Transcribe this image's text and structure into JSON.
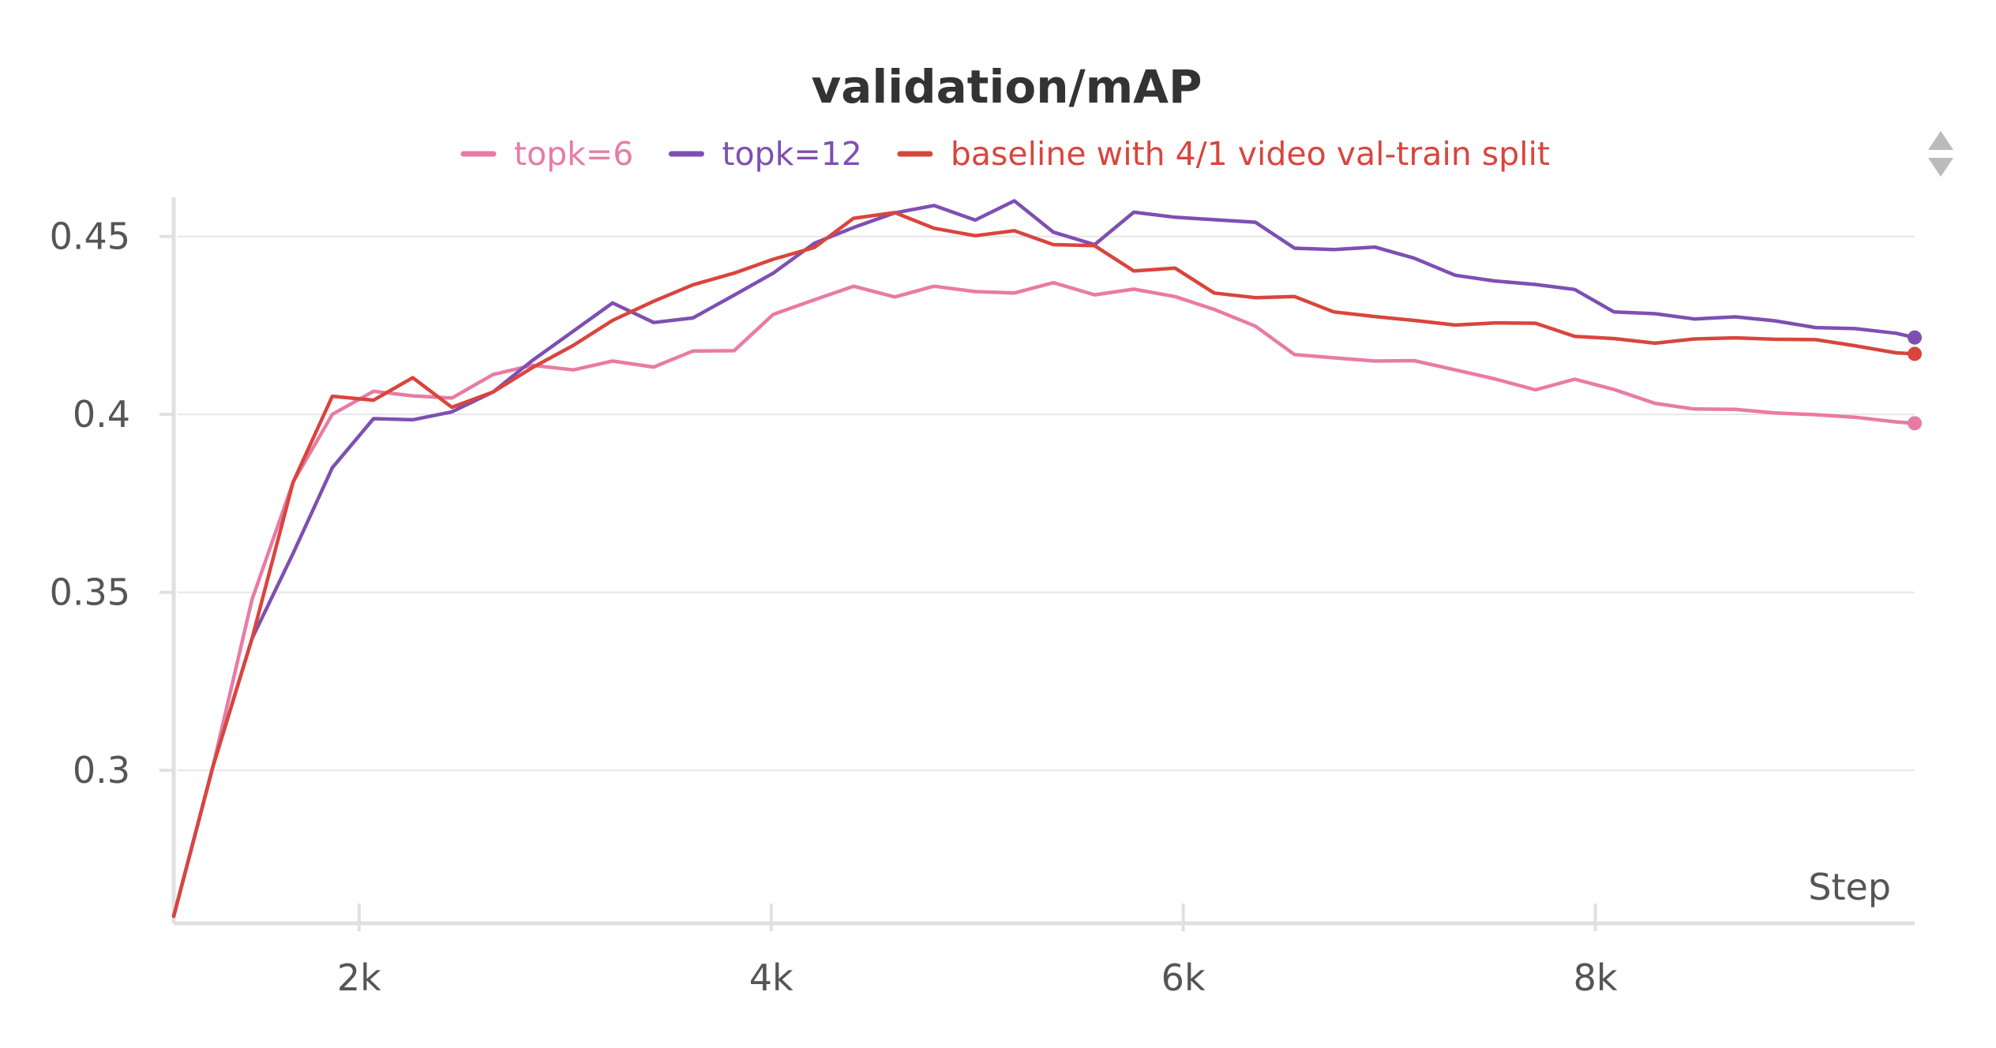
{
  "chart_data": {
    "type": "line",
    "title": "validation/mAP",
    "xlabel": "Step",
    "ylabel": "",
    "xlim": [
      1100,
      9550
    ],
    "ylim": [
      0.257,
      0.461
    ],
    "x_ticks": [
      2000,
      4000,
      6000,
      8000
    ],
    "x_tick_labels": [
      "2k",
      "4k",
      "6k",
      "8k"
    ],
    "y_ticks": [
      0.3,
      0.35,
      0.4,
      0.45
    ],
    "y_tick_labels": [
      "0.3",
      "0.35",
      "0.4",
      "0.45"
    ],
    "grid": true,
    "legend_position": "top-center",
    "series": [
      {
        "name": "topk=6",
        "color": "#e87ba4",
        "x": [
          1100,
          1290,
          1480,
          1680,
          1870,
          2070,
          2260,
          2450,
          2650,
          2840,
          3040,
          3230,
          3430,
          3620,
          3820,
          4010,
          4210,
          4400,
          4600,
          4790,
          4990,
          5180,
          5370,
          5570,
          5760,
          5960,
          6150,
          6350,
          6540,
          6730,
          6930,
          7120,
          7320,
          7510,
          7710,
          7900,
          8090,
          8290,
          8480,
          8680,
          8870,
          9070,
          9260,
          9460,
          9550
        ],
        "y": [
          0.259,
          0.301,
          0.348,
          0.381,
          0.4,
          0.4065,
          0.4052,
          0.4046,
          0.4112,
          0.4138,
          0.4125,
          0.415,
          0.4133,
          0.4178,
          0.4179,
          0.4281,
          0.4322,
          0.436,
          0.433,
          0.436,
          0.4345,
          0.4341,
          0.437,
          0.4336,
          0.4352,
          0.4331,
          0.4295,
          0.4248,
          0.4168,
          0.4159,
          0.415,
          0.4151,
          0.4125,
          0.41,
          0.4069,
          0.4099,
          0.407,
          0.4031,
          0.4015,
          0.4014,
          0.4004,
          0.3999,
          0.3992,
          0.3979,
          0.3975
        ]
      },
      {
        "name": "topk=12",
        "color": "#7e4fb3",
        "x": [
          1100,
          1290,
          1480,
          1680,
          1870,
          2070,
          2260,
          2450,
          2650,
          2840,
          3040,
          3230,
          3430,
          3620,
          3820,
          4010,
          4210,
          4400,
          4600,
          4790,
          4990,
          5180,
          5370,
          5570,
          5760,
          5960,
          6150,
          6350,
          6540,
          6730,
          6930,
          7120,
          7320,
          7510,
          7710,
          7900,
          8090,
          8290,
          8480,
          8680,
          8870,
          9070,
          9260,
          9460,
          9550
        ],
        "y": [
          0.259,
          0.301,
          0.337,
          0.361,
          0.385,
          0.3988,
          0.3985,
          0.4007,
          0.4063,
          0.4151,
          0.4234,
          0.4313,
          0.4258,
          0.4271,
          0.4335,
          0.4397,
          0.4481,
          0.4525,
          0.4566,
          0.4587,
          0.4546,
          0.46,
          0.4512,
          0.4477,
          0.4568,
          0.4554,
          0.4547,
          0.454,
          0.4467,
          0.4463,
          0.447,
          0.4439,
          0.4391,
          0.4375,
          0.4365,
          0.4351,
          0.4288,
          0.4283,
          0.4268,
          0.4274,
          0.4263,
          0.4244,
          0.4241,
          0.4228,
          0.4216
        ]
      },
      {
        "name": "baseline with 4/1 video val-train split",
        "color": "#d9453d",
        "x": [
          1100,
          1290,
          1480,
          1680,
          1870,
          2070,
          2260,
          2450,
          2650,
          2840,
          3040,
          3230,
          3430,
          3620,
          3820,
          4010,
          4210,
          4400,
          4600,
          4790,
          4990,
          5180,
          5370,
          5570,
          5760,
          5960,
          6150,
          6350,
          6540,
          6730,
          6930,
          7120,
          7320,
          7510,
          7710,
          7900,
          8090,
          8290,
          8480,
          8680,
          8870,
          9070,
          9260,
          9460,
          9550
        ],
        "y": [
          0.259,
          0.301,
          0.337,
          0.381,
          0.4051,
          0.404,
          0.4103,
          0.402,
          0.4063,
          0.4131,
          0.4194,
          0.4264,
          0.4318,
          0.4364,
          0.4397,
          0.4436,
          0.4469,
          0.4551,
          0.4567,
          0.4523,
          0.4502,
          0.4516,
          0.4477,
          0.4474,
          0.4403,
          0.4411,
          0.4341,
          0.4328,
          0.4331,
          0.4288,
          0.4275,
          0.4264,
          0.4251,
          0.4257,
          0.4256,
          0.4219,
          0.4213,
          0.42,
          0.4212,
          0.4215,
          0.4211,
          0.421,
          0.4193,
          0.4173,
          0.417
        ]
      }
    ]
  },
  "icon": "sort-arrows-icon"
}
